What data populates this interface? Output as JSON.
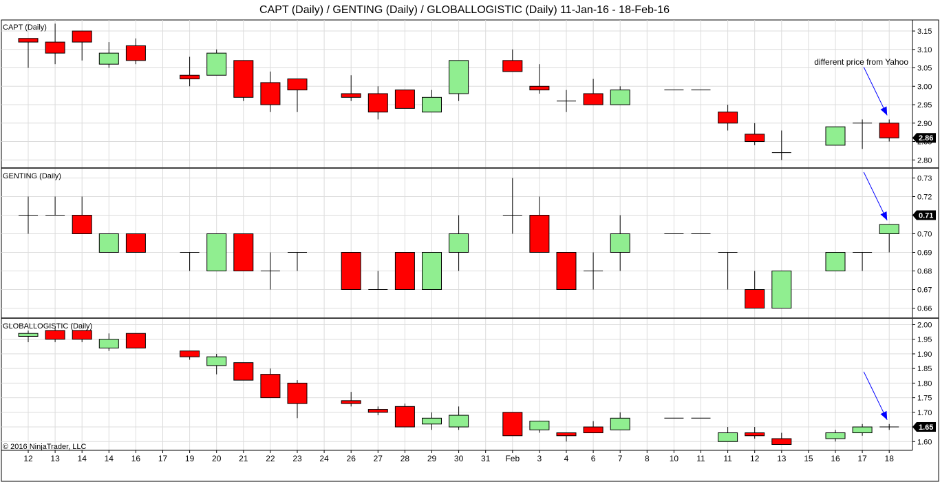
{
  "title": "CAPT (Daily) / GENTING (Daily) / GLOBALLOGISTIC (Daily)  11-Jan-16 - 18-Feb-16",
  "copyright": "© 2016 NinjaTrader, LLC",
  "colors": {
    "up": "#90EE90",
    "down": "#FF0000",
    "grid": "#dcdcdc",
    "annotation": "#0000FF"
  },
  "x_labels": [
    "12",
    "13",
    "14",
    "14",
    "16",
    "17",
    "19",
    "20",
    "21",
    "22",
    "23",
    "24",
    "26",
    "27",
    "28",
    "29",
    "30",
    "31",
    "Feb",
    "3",
    "4",
    "6",
    "7",
    "8",
    "10",
    "11",
    "11",
    "12",
    "13",
    "15",
    "16",
    "17",
    "18"
  ],
  "chart_data": [
    {
      "type": "candlestick",
      "title": "CAPT (Daily)",
      "ylim": [
        2.78,
        3.18
      ],
      "y_ticks": [
        "3.15",
        "3.10",
        "3.05",
        "3.00",
        "2.95",
        "2.90",
        "2.85",
        "2.80"
      ],
      "last_price_label": "2.86",
      "annotation": "different price from Yahoo",
      "candles": [
        {
          "slot": 0,
          "open": 3.13,
          "high": 3.13,
          "low": 3.05,
          "close": 3.12
        },
        {
          "slot": 1,
          "open": 3.12,
          "high": 3.17,
          "low": 3.06,
          "close": 3.09
        },
        {
          "slot": 2,
          "open": 3.15,
          "high": 3.15,
          "low": 3.07,
          "close": 3.12
        },
        {
          "slot": 3,
          "open": 3.06,
          "high": 3.12,
          "low": 3.05,
          "close": 3.09
        },
        {
          "slot": 4,
          "open": 3.11,
          "high": 3.13,
          "low": 3.06,
          "close": 3.07
        },
        {
          "slot": 6,
          "open": 3.03,
          "high": 3.08,
          "low": 3.0,
          "close": 3.02
        },
        {
          "slot": 7,
          "open": 3.03,
          "high": 3.1,
          "low": 3.03,
          "close": 3.09
        },
        {
          "slot": 8,
          "open": 3.07,
          "high": 3.07,
          "low": 2.96,
          "close": 2.97
        },
        {
          "slot": 9,
          "open": 3.01,
          "high": 3.04,
          "low": 2.93,
          "close": 2.95
        },
        {
          "slot": 10,
          "open": 3.02,
          "high": 3.02,
          "low": 2.93,
          "close": 2.99
        },
        {
          "slot": 12,
          "open": 2.98,
          "high": 3.03,
          "low": 2.96,
          "close": 2.97
        },
        {
          "slot": 13,
          "open": 2.98,
          "high": 3.0,
          "low": 2.91,
          "close": 2.93
        },
        {
          "slot": 14,
          "open": 2.99,
          "high": 2.99,
          "low": 2.94,
          "close": 2.94
        },
        {
          "slot": 15,
          "open": 2.93,
          "high": 2.99,
          "low": 2.93,
          "close": 2.97
        },
        {
          "slot": 16,
          "open": 2.98,
          "high": 3.07,
          "low": 2.96,
          "close": 3.07
        },
        {
          "slot": 18,
          "open": 3.07,
          "high": 3.1,
          "low": 3.04,
          "close": 3.04
        },
        {
          "slot": 19,
          "open": 3.0,
          "high": 3.06,
          "low": 2.98,
          "close": 2.99
        },
        {
          "slot": 20,
          "open": 2.96,
          "high": 2.99,
          "low": 2.93,
          "close": 2.96
        },
        {
          "slot": 21,
          "open": 2.98,
          "high": 3.02,
          "low": 2.95,
          "close": 2.95
        },
        {
          "slot": 22,
          "open": 2.95,
          "high": 3.0,
          "low": 2.95,
          "close": 2.99
        },
        {
          "slot": 24,
          "open": 2.99,
          "high": 2.99,
          "low": 2.99,
          "close": 2.99
        },
        {
          "slot": 25,
          "open": 2.99,
          "high": 2.99,
          "low": 2.99,
          "close": 2.99
        },
        {
          "slot": 26,
          "open": 2.93,
          "high": 2.95,
          "low": 2.88,
          "close": 2.9
        },
        {
          "slot": 27,
          "open": 2.87,
          "high": 2.9,
          "low": 2.84,
          "close": 2.85
        },
        {
          "slot": 28,
          "open": 2.82,
          "high": 2.88,
          "low": 2.8,
          "close": 2.82
        },
        {
          "slot": 30,
          "open": 2.84,
          "high": 2.89,
          "low": 2.84,
          "close": 2.89
        },
        {
          "slot": 31,
          "open": 2.9,
          "high": 2.91,
          "low": 2.83,
          "close": 2.9
        },
        {
          "slot": 32,
          "open": 2.9,
          "high": 2.91,
          "low": 2.85,
          "close": 2.86
        }
      ]
    },
    {
      "type": "candlestick",
      "title": "GENTING (Daily)",
      "ylim": [
        0.655,
        0.735
      ],
      "y_ticks": [
        "0.73",
        "0.72",
        "0.71",
        "0.70",
        "0.69",
        "0.68",
        "0.67",
        "0.66"
      ],
      "last_price_label": "0.71",
      "candles": [
        {
          "slot": 0,
          "open": 0.71,
          "high": 0.72,
          "low": 0.7,
          "close": 0.71
        },
        {
          "slot": 1,
          "open": 0.71,
          "high": 0.72,
          "low": 0.71,
          "close": 0.71
        },
        {
          "slot": 2,
          "open": 0.71,
          "high": 0.72,
          "low": 0.7,
          "close": 0.7
        },
        {
          "slot": 3,
          "open": 0.69,
          "high": 0.7,
          "low": 0.69,
          "close": 0.7
        },
        {
          "slot": 4,
          "open": 0.7,
          "high": 0.7,
          "low": 0.69,
          "close": 0.69
        },
        {
          "slot": 6,
          "open": 0.69,
          "high": 0.69,
          "low": 0.68,
          "close": 0.69
        },
        {
          "slot": 7,
          "open": 0.68,
          "high": 0.7,
          "low": 0.68,
          "close": 0.7
        },
        {
          "slot": 8,
          "open": 0.7,
          "high": 0.7,
          "low": 0.68,
          "close": 0.68
        },
        {
          "slot": 9,
          "open": 0.68,
          "high": 0.69,
          "low": 0.67,
          "close": 0.68
        },
        {
          "slot": 10,
          "open": 0.69,
          "high": 0.69,
          "low": 0.68,
          "close": 0.69
        },
        {
          "slot": 12,
          "open": 0.69,
          "high": 0.69,
          "low": 0.67,
          "close": 0.67
        },
        {
          "slot": 13,
          "open": 0.67,
          "high": 0.68,
          "low": 0.67,
          "close": 0.67
        },
        {
          "slot": 14,
          "open": 0.69,
          "high": 0.69,
          "low": 0.67,
          "close": 0.67
        },
        {
          "slot": 15,
          "open": 0.67,
          "high": 0.69,
          "low": 0.67,
          "close": 0.69
        },
        {
          "slot": 16,
          "open": 0.69,
          "high": 0.71,
          "low": 0.68,
          "close": 0.7
        },
        {
          "slot": 18,
          "open": 0.71,
          "high": 0.73,
          "low": 0.7,
          "close": 0.71
        },
        {
          "slot": 19,
          "open": 0.71,
          "high": 0.72,
          "low": 0.69,
          "close": 0.69
        },
        {
          "slot": 20,
          "open": 0.69,
          "high": 0.69,
          "low": 0.67,
          "close": 0.67
        },
        {
          "slot": 21,
          "open": 0.68,
          "high": 0.69,
          "low": 0.67,
          "close": 0.68
        },
        {
          "slot": 22,
          "open": 0.69,
          "high": 0.71,
          "low": 0.68,
          "close": 0.7
        },
        {
          "slot": 24,
          "open": 0.7,
          "high": 0.7,
          "low": 0.7,
          "close": 0.7
        },
        {
          "slot": 25,
          "open": 0.7,
          "high": 0.7,
          "low": 0.7,
          "close": 0.7
        },
        {
          "slot": 26,
          "open": 0.69,
          "high": 0.69,
          "low": 0.67,
          "close": 0.69
        },
        {
          "slot": 27,
          "open": 0.67,
          "high": 0.68,
          "low": 0.66,
          "close": 0.66
        },
        {
          "slot": 28,
          "open": 0.66,
          "high": 0.68,
          "low": 0.66,
          "close": 0.68
        },
        {
          "slot": 30,
          "open": 0.68,
          "high": 0.69,
          "low": 0.68,
          "close": 0.69
        },
        {
          "slot": 31,
          "open": 0.69,
          "high": 0.69,
          "low": 0.68,
          "close": 0.69
        },
        {
          "slot": 32,
          "open": 0.7,
          "high": 0.705,
          "low": 0.69,
          "close": 0.705
        }
      ]
    },
    {
      "type": "candlestick",
      "title": "GLOBALLOGISTIC (Daily)",
      "ylim": [
        1.57,
        2.02
      ],
      "y_ticks": [
        "2.00",
        "1.95",
        "1.90",
        "1.85",
        "1.80",
        "1.75",
        "1.70",
        "1.65",
        "1.60"
      ],
      "last_price_label": "1.65",
      "candles": [
        {
          "slot": 0,
          "open": 1.96,
          "high": 1.98,
          "low": 1.94,
          "close": 1.97
        },
        {
          "slot": 1,
          "open": 1.98,
          "high": 1.99,
          "low": 1.94,
          "close": 1.95
        },
        {
          "slot": 2,
          "open": 1.98,
          "high": 1.98,
          "low": 1.94,
          "close": 1.95
        },
        {
          "slot": 3,
          "open": 1.92,
          "high": 1.97,
          "low": 1.91,
          "close": 1.95
        },
        {
          "slot": 4,
          "open": 1.97,
          "high": 1.97,
          "low": 1.92,
          "close": 1.92
        },
        {
          "slot": 6,
          "open": 1.91,
          "high": 1.91,
          "low": 1.88,
          "close": 1.89
        },
        {
          "slot": 7,
          "open": 1.86,
          "high": 1.9,
          "low": 1.83,
          "close": 1.89
        },
        {
          "slot": 8,
          "open": 1.87,
          "high": 1.87,
          "low": 1.81,
          "close": 1.81
        },
        {
          "slot": 9,
          "open": 1.83,
          "high": 1.85,
          "low": 1.75,
          "close": 1.75
        },
        {
          "slot": 10,
          "open": 1.8,
          "high": 1.81,
          "low": 1.68,
          "close": 1.73
        },
        {
          "slot": 12,
          "open": 1.74,
          "high": 1.77,
          "low": 1.72,
          "close": 1.73
        },
        {
          "slot": 13,
          "open": 1.71,
          "high": 1.72,
          "low": 1.69,
          "close": 1.7
        },
        {
          "slot": 14,
          "open": 1.72,
          "high": 1.73,
          "low": 1.65,
          "close": 1.65
        },
        {
          "slot": 15,
          "open": 1.66,
          "high": 1.7,
          "low": 1.64,
          "close": 1.68
        },
        {
          "slot": 16,
          "open": 1.65,
          "high": 1.72,
          "low": 1.64,
          "close": 1.69
        },
        {
          "slot": 18,
          "open": 1.7,
          "high": 1.7,
          "low": 1.62,
          "close": 1.62
        },
        {
          "slot": 19,
          "open": 1.64,
          "high": 1.67,
          "low": 1.63,
          "close": 1.67
        },
        {
          "slot": 20,
          "open": 1.63,
          "high": 1.63,
          "low": 1.6,
          "close": 1.62
        },
        {
          "slot": 21,
          "open": 1.65,
          "high": 1.67,
          "low": 1.63,
          "close": 1.63
        },
        {
          "slot": 22,
          "open": 1.64,
          "high": 1.7,
          "low": 1.64,
          "close": 1.68
        },
        {
          "slot": 24,
          "open": 1.68,
          "high": 1.68,
          "low": 1.68,
          "close": 1.68
        },
        {
          "slot": 25,
          "open": 1.68,
          "high": 1.68,
          "low": 1.68,
          "close": 1.68
        },
        {
          "slot": 26,
          "open": 1.6,
          "high": 1.65,
          "low": 1.6,
          "close": 1.63
        },
        {
          "slot": 27,
          "open": 1.63,
          "high": 1.65,
          "low": 1.61,
          "close": 1.62
        },
        {
          "slot": 28,
          "open": 1.61,
          "high": 1.63,
          "low": 1.59,
          "close": 1.59
        },
        {
          "slot": 30,
          "open": 1.61,
          "high": 1.64,
          "low": 1.6,
          "close": 1.63
        },
        {
          "slot": 31,
          "open": 1.63,
          "high": 1.66,
          "low": 1.62,
          "close": 1.65
        },
        {
          "slot": 32,
          "open": 1.65,
          "high": 1.66,
          "low": 1.64,
          "close": 1.65
        }
      ]
    }
  ]
}
